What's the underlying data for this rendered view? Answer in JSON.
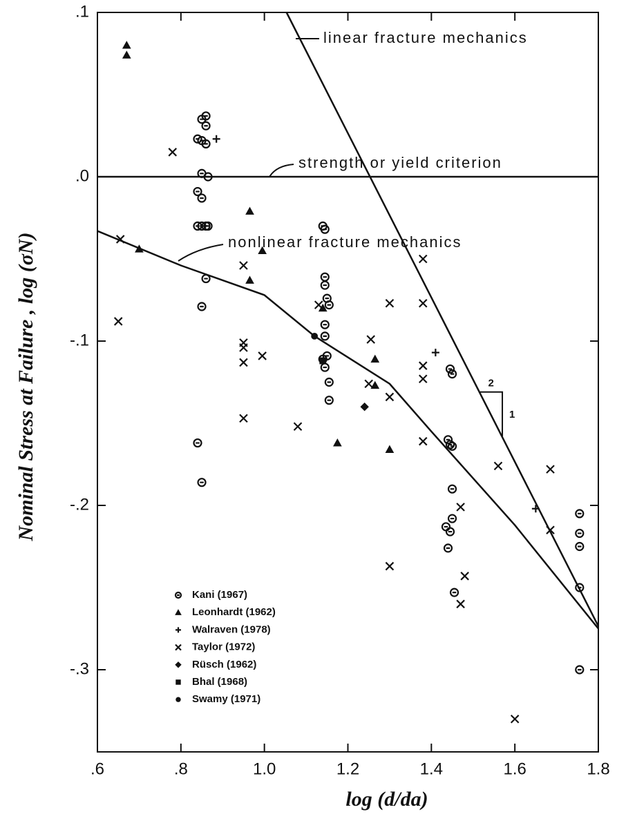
{
  "chart_data": {
    "type": "scatter",
    "xlabel": "log (d/da)",
    "ylabel": "Nominal Stress at Failure , log (σN)",
    "xlim": [
      0.6,
      1.8
    ],
    "ylim": [
      -0.35,
      0.1
    ],
    "xticks": [
      {
        "value": 0.6,
        "label": ".6"
      },
      {
        "value": 0.8,
        "label": ".8"
      },
      {
        "value": 1.0,
        "label": "1.0"
      },
      1.2,
      1.4,
      1.6,
      1.8
    ],
    "yticks": [
      {
        "value": 0.1,
        "label": ".1"
      },
      {
        "value": 0,
        "label": ".0"
      },
      {
        "value": -0.1,
        "label": "-.1"
      },
      {
        "value": -0.2,
        "label": "-.2"
      },
      {
        "value": -0.3,
        "label": "-.3"
      }
    ],
    "legend": "lower left",
    "lines": [
      {
        "label": "linear fracture mechanics",
        "x": [
          1.053,
          1.8
        ],
        "y": [
          0.1,
          -0.2735
        ]
      },
      {
        "label": "strength or yield criterion",
        "x": [
          0.6,
          1.8
        ],
        "y": [
          0,
          0
        ]
      },
      {
        "label": "nonlinear fracture mechanics",
        "x": [
          0.6,
          0.8,
          1.0,
          1.12,
          1.3,
          1.4,
          1.6,
          1.8
        ],
        "y": [
          -0.033,
          -0.054,
          -0.072,
          -0.097,
          -0.126,
          -0.155,
          -0.212,
          -0.275
        ]
      }
    ],
    "slope_labels": [
      "2",
      "1"
    ],
    "series": [
      {
        "name": "Kani (1967)",
        "marker": "circle",
        "color": "#111",
        "x": [
          0.84,
          0.85,
          0.86,
          0.86,
          0.85,
          0.86,
          0.85,
          0.865,
          0.84,
          0.85,
          0.84,
          0.85,
          0.86,
          0.865,
          0.86,
          0.85,
          0.84,
          0.85,
          1.14,
          1.145,
          1.145,
          1.145,
          1.15,
          1.155,
          1.145,
          1.145,
          1.15,
          1.14,
          1.145,
          1.155,
          1.155,
          1.445,
          1.45,
          1.44,
          1.445,
          1.45,
          1.45,
          1.435,
          1.45,
          1.445,
          1.44,
          1.455,
          1.755,
          1.755,
          1.755,
          1.755,
          1.755
        ],
        "y": [
          0.023,
          0.035,
          0.037,
          0.031,
          0.022,
          0.02,
          0.002,
          0.0,
          -0.009,
          -0.013,
          -0.03,
          -0.03,
          -0.03,
          -0.03,
          -0.062,
          -0.079,
          -0.162,
          -0.186,
          -0.03,
          -0.032,
          -0.061,
          -0.066,
          -0.074,
          -0.078,
          -0.09,
          -0.097,
          -0.109,
          -0.111,
          -0.116,
          -0.125,
          -0.136,
          -0.117,
          -0.12,
          -0.16,
          -0.163,
          -0.164,
          -0.19,
          -0.213,
          -0.208,
          -0.216,
          -0.226,
          -0.253,
          -0.205,
          -0.217,
          -0.225,
          -0.25,
          -0.3
        ]
      },
      {
        "name": "Leonhardt (1962)",
        "marker": "triangle",
        "color": "#111",
        "x": [
          0.67,
          0.67,
          0.965,
          0.995,
          0.965,
          0.7,
          1.265,
          1.265,
          1.175,
          1.3,
          1.14
        ],
        "y": [
          0.08,
          0.074,
          -0.021,
          -0.045,
          -0.063,
          -0.044,
          -0.111,
          -0.127,
          -0.162,
          -0.166,
          -0.08
        ]
      },
      {
        "name": "Walraven (1978)",
        "marker": "plus",
        "color": "#111",
        "x": [
          0.885,
          1.41,
          1.65
        ],
        "y": [
          0.023,
          -0.107,
          -0.202
        ]
      },
      {
        "name": "Taylor (1972)",
        "marker": "x",
        "color": "#111",
        "x": [
          0.78,
          0.655,
          0.65,
          0.95,
          0.95,
          0.95,
          0.95,
          0.995,
          0.95,
          1.08,
          1.255,
          1.3,
          1.3,
          1.38,
          1.38,
          1.38,
          1.38,
          1.38,
          1.3,
          1.47,
          1.48,
          1.47,
          1.56,
          1.685,
          1.685,
          1.6,
          1.13,
          1.25
        ],
        "y": [
          0.015,
          -0.038,
          -0.088,
          -0.054,
          -0.101,
          -0.104,
          -0.113,
          -0.109,
          -0.147,
          -0.152,
          -0.099,
          -0.077,
          -0.134,
          -0.05,
          -0.077,
          -0.115,
          -0.123,
          -0.161,
          -0.237,
          -0.201,
          -0.243,
          -0.26,
          -0.176,
          -0.178,
          -0.215,
          -0.33,
          -0.078,
          -0.126
        ]
      },
      {
        "name": "Rüsch (1962)",
        "marker": "diamond",
        "color": "#111",
        "x": [
          1.24
        ],
        "y": [
          -0.14
        ]
      },
      {
        "name": "Bhal (1968)",
        "marker": "square",
        "color": "#111",
        "x": [
          1.14
        ],
        "y": [
          -0.112
        ]
      },
      {
        "name": "Swamy (1971)",
        "marker": "dot",
        "color": "#111",
        "x": [
          1.12
        ],
        "y": [
          -0.097
        ]
      }
    ]
  }
}
